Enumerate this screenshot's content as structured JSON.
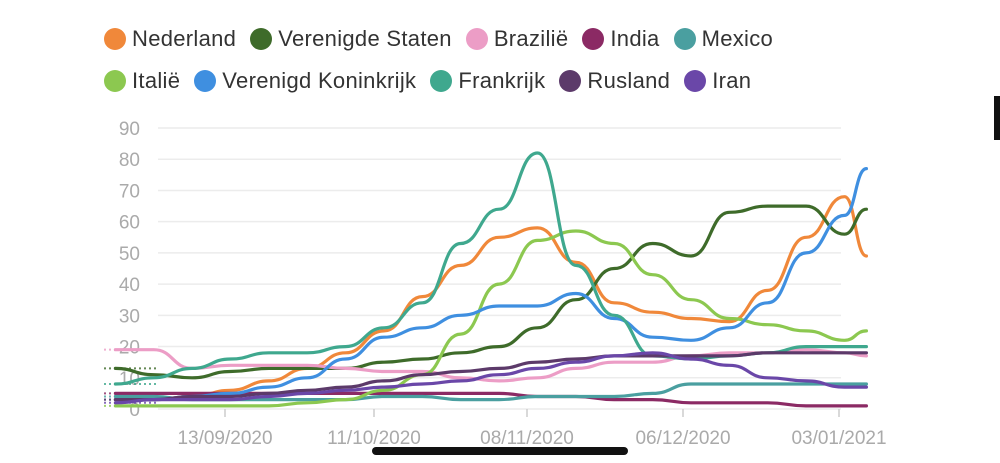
{
  "chart_data": {
    "type": "line",
    "ylim": [
      0,
      90
    ],
    "yticks": [
      0,
      10,
      20,
      30,
      40,
      50,
      60,
      70,
      80,
      90
    ],
    "x_dates": [
      "2020-08-24",
      "2020-08-31",
      "2020-09-07",
      "2020-09-14",
      "2020-09-21",
      "2020-09-28",
      "2020-10-05",
      "2020-10-12",
      "2020-10-19",
      "2020-10-26",
      "2020-11-02",
      "2020-11-09",
      "2020-11-16",
      "2020-11-23",
      "2020-11-30",
      "2020-12-07",
      "2020-12-14",
      "2020-12-21",
      "2020-12-28",
      "2021-01-04",
      "2021-01-08"
    ],
    "xticks": [
      {
        "label": "13/09/2020"
      },
      {
        "label": "11/10/2020"
      },
      {
        "label": "08/11/2020"
      },
      {
        "label": "06/12/2020"
      },
      {
        "label": "03/01/2021"
      }
    ],
    "legend_position": "top",
    "grid": true,
    "series": [
      {
        "name": "Nederland",
        "color": "#F0883A",
        "values": [
          3,
          3,
          4,
          6,
          9,
          13,
          18,
          25,
          36,
          46,
          55,
          58,
          47,
          34,
          31,
          29,
          28,
          38,
          55,
          68,
          49
        ]
      },
      {
        "name": "Verenigde Staten",
        "color": "#3E6B2A",
        "values": [
          13,
          11,
          10,
          12,
          13,
          13,
          13,
          15,
          16,
          18,
          20,
          26,
          35,
          45,
          53,
          49,
          63,
          65,
          65,
          56,
          64
        ]
      },
      {
        "name": "Brazilië",
        "color": "#EC9DC6",
        "values": [
          19,
          19,
          13,
          14,
          14,
          14,
          13,
          12,
          12,
          10,
          9,
          10,
          13,
          15,
          15,
          17,
          18,
          18,
          19,
          18,
          17
        ]
      },
      {
        "name": "India",
        "color": "#8B2A64",
        "values": [
          5,
          5,
          5,
          5,
          5,
          5,
          5,
          5,
          5,
          5,
          5,
          4,
          4,
          3,
          3,
          2,
          2,
          2,
          1,
          1,
          1
        ]
      },
      {
        "name": "Mexico",
        "color": "#4A9FA0",
        "values": [
          4,
          4,
          3,
          3,
          3,
          3,
          3,
          4,
          4,
          3,
          3,
          4,
          4,
          4,
          5,
          8,
          8,
          8,
          8,
          8,
          8
        ]
      },
      {
        "name": "Italië",
        "color": "#8CC850",
        "values": [
          1,
          1,
          1,
          1,
          1,
          2,
          3,
          6,
          11,
          24,
          40,
          54,
          57,
          53,
          43,
          35,
          29,
          27,
          25,
          22,
          25
        ]
      },
      {
        "name": "Verenigd Koninkrijk",
        "color": "#3F8FE0",
        "values": [
          3,
          3,
          4,
          5,
          7,
          10,
          16,
          23,
          26,
          30,
          33,
          33,
          37,
          29,
          23,
          22,
          26,
          34,
          50,
          62,
          77
        ]
      },
      {
        "name": "Frankrijk",
        "color": "#3FA88E",
        "values": [
          8,
          10,
          13,
          16,
          18,
          18,
          20,
          26,
          34,
          53,
          64,
          82,
          46,
          30,
          17,
          16,
          17,
          18,
          20,
          20,
          20
        ]
      },
      {
        "name": "Rusland",
        "color": "#5C3A6A",
        "values": [
          3,
          3,
          4,
          4,
          5,
          6,
          7,
          9,
          11,
          12,
          13,
          15,
          16,
          17,
          17,
          17,
          17,
          18,
          18,
          18,
          18
        ]
      },
      {
        "name": "Iran",
        "color": "#6A47A8",
        "values": [
          2,
          3,
          3,
          3,
          4,
          5,
          6,
          7,
          8,
          9,
          11,
          13,
          15,
          17,
          18,
          16,
          14,
          10,
          9,
          7,
          7
        ]
      }
    ]
  }
}
